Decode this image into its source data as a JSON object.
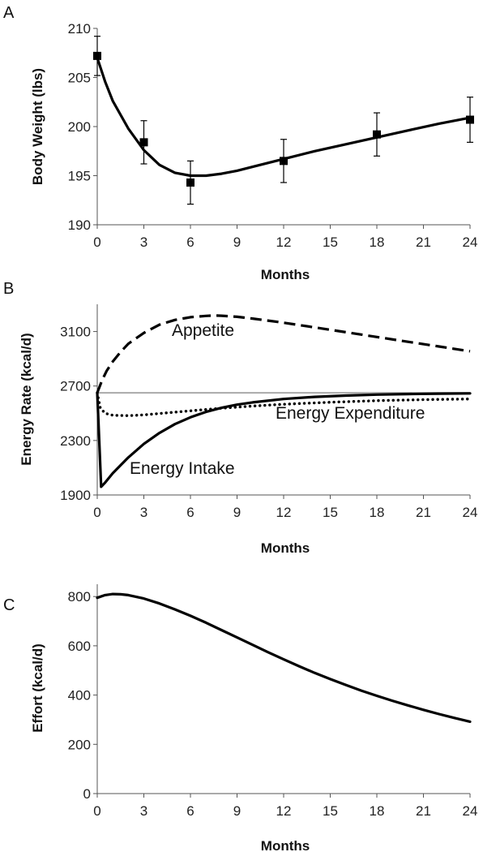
{
  "chart_data": [
    {
      "panel_label": "A",
      "type": "line",
      "xlabel": "Months",
      "ylabel": "Body Weight (lbs)",
      "xlim": [
        0,
        24
      ],
      "ylim": [
        190,
        210
      ],
      "xticks": [
        0,
        3,
        6,
        9,
        12,
        15,
        18,
        21,
        24
      ],
      "yticks": [
        190,
        195,
        200,
        205,
        210
      ],
      "grid": false,
      "series": [
        {
          "style": "solid",
          "x": [
            0,
            0.5,
            1,
            2,
            3,
            4,
            5,
            6,
            7,
            8,
            9,
            10,
            12,
            14,
            16,
            18,
            20,
            22,
            24
          ],
          "y": [
            207.0,
            204.6,
            202.6,
            199.8,
            197.6,
            196.1,
            195.3,
            195.0,
            195.0,
            195.2,
            195.5,
            195.9,
            196.7,
            197.5,
            198.2,
            198.9,
            199.6,
            200.3,
            200.9
          ]
        }
      ],
      "points": {
        "marker": "square",
        "x": [
          0,
          3,
          6,
          12,
          18,
          24
        ],
        "y": [
          207.2,
          198.4,
          194.3,
          196.5,
          199.2,
          200.7
        ],
        "err": [
          2.0,
          2.2,
          2.2,
          2.2,
          2.2,
          2.3
        ]
      }
    },
    {
      "panel_label": "B",
      "type": "line",
      "xlabel": "Months",
      "ylabel": "Energy Rate (kcal/d)",
      "xlim": [
        0,
        24
      ],
      "ylim": [
        1900,
        3300
      ],
      "xticks": [
        0,
        3,
        6,
        9,
        12,
        15,
        18,
        21,
        24
      ],
      "yticks": [
        1900,
        2300,
        2700,
        3100
      ],
      "grid": false,
      "reference_line": {
        "y": 2650,
        "color": "#aaaaaa"
      },
      "series": [
        {
          "name": "Appetite",
          "style": "dashed",
          "x": [
            0,
            0.3,
            0.6,
            1,
            1.5,
            2,
            3,
            4,
            5,
            6,
            7,
            7.5,
            8,
            9,
            10,
            12,
            14,
            16,
            18,
            20,
            22,
            24
          ],
          "y": [
            2650,
            2740,
            2810,
            2880,
            2950,
            3010,
            3090,
            3150,
            3185,
            3205,
            3215,
            3218,
            3216,
            3208,
            3195,
            3165,
            3130,
            3095,
            3060,
            3025,
            2990,
            2955
          ]
        },
        {
          "name": "Energy Expenditure",
          "style": "dotted",
          "x": [
            0,
            0.2,
            0.5,
            1,
            2,
            3,
            4,
            6,
            8,
            10,
            12,
            15,
            18,
            21,
            24
          ],
          "y": [
            2650,
            2540,
            2500,
            2485,
            2482,
            2488,
            2498,
            2518,
            2537,
            2553,
            2566,
            2581,
            2592,
            2600,
            2605
          ]
        },
        {
          "name": "Energy Intake",
          "style": "solid",
          "x": [
            0,
            0.25,
            0.5,
            1,
            2,
            3,
            4,
            5,
            6,
            7,
            8,
            9,
            10,
            12,
            14,
            16,
            18,
            20,
            22,
            24
          ],
          "y": [
            2650,
            1960,
            1990,
            2060,
            2175,
            2275,
            2355,
            2420,
            2470,
            2510,
            2540,
            2563,
            2580,
            2605,
            2620,
            2630,
            2637,
            2641,
            2644,
            2646
          ]
        }
      ],
      "labels": {
        "appetite": "Appetite",
        "expenditure": "Energy Expenditure",
        "intake": "Energy Intake"
      }
    },
    {
      "panel_label": "C",
      "type": "line",
      "xlabel": "Months",
      "ylabel": "Effort (kcal/d)",
      "xlim": [
        0,
        24
      ],
      "ylim": [
        0,
        850
      ],
      "xticks": [
        0,
        3,
        6,
        9,
        12,
        15,
        18,
        21,
        24
      ],
      "yticks": [
        0,
        200,
        400,
        600,
        800
      ],
      "grid": false,
      "series": [
        {
          "style": "solid",
          "x": [
            0,
            0.5,
            1,
            1.5,
            2,
            3,
            4,
            5,
            6,
            7,
            8,
            9,
            10,
            11,
            12,
            13,
            14,
            15,
            16,
            17,
            18,
            19,
            20,
            21,
            22,
            23,
            24
          ],
          "y": [
            795,
            806,
            810,
            809,
            806,
            792,
            772,
            748,
            722,
            694,
            664,
            634,
            604,
            574,
            545,
            517,
            490,
            465,
            441,
            418,
            397,
            377,
            358,
            340,
            323,
            307,
            292
          ]
        }
      ]
    }
  ]
}
